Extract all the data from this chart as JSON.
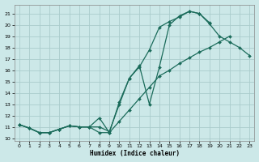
{
  "xlabel": "Humidex (Indice chaleur)",
  "background_color": "#cce8e8",
  "grid_color": "#aacccc",
  "line_color": "#1a6b5a",
  "xlim": [
    -0.5,
    23.5
  ],
  "ylim": [
    9.8,
    21.8
  ],
  "yticks": [
    10,
    11,
    12,
    13,
    14,
    15,
    16,
    17,
    18,
    19,
    20,
    21
  ],
  "xticks": [
    0,
    1,
    2,
    3,
    4,
    5,
    6,
    7,
    8,
    9,
    10,
    11,
    12,
    13,
    14,
    15,
    16,
    17,
    18,
    19,
    20,
    21,
    22,
    23
  ],
  "series": [
    {
      "x": [
        0,
        1,
        2,
        3,
        4,
        5,
        6,
        7,
        8,
        9,
        10,
        11,
        12,
        13,
        14,
        15,
        16,
        17,
        18,
        19,
        20,
        21,
        22,
        23
      ],
      "y": [
        11.2,
        10.9,
        10.5,
        10.5,
        10.8,
        11.1,
        11.0,
        11.0,
        11.0,
        10.6,
        13.0,
        15.3,
        16.3,
        17.8,
        19.8,
        20.3,
        20.7,
        21.2,
        21.0,
        20.1,
        19.0,
        18.5,
        18.0,
        17.3
      ]
    },
    {
      "x": [
        0,
        1,
        2,
        3,
        4,
        5,
        6,
        7,
        8,
        9,
        10,
        11,
        12,
        13,
        14,
        15,
        16,
        17,
        18,
        19
      ],
      "y": [
        11.2,
        10.9,
        10.5,
        10.5,
        10.8,
        11.1,
        11.0,
        11.0,
        11.8,
        10.5,
        13.2,
        15.3,
        16.4,
        13.0,
        16.3,
        20.0,
        20.8,
        21.2,
        21.0,
        20.2
      ]
    },
    {
      "x": [
        0,
        1,
        2,
        3,
        4,
        5,
        6,
        7,
        8,
        9,
        10,
        11,
        12,
        13,
        14,
        15,
        16,
        17,
        18,
        19,
        20,
        21,
        22,
        23
      ],
      "y": [
        11.2,
        10.9,
        10.5,
        10.5,
        10.8,
        11.1,
        11.0,
        11.0,
        10.5,
        10.5,
        11.5,
        12.5,
        13.5,
        14.5,
        15.5,
        16.0,
        16.6,
        17.1,
        17.6,
        18.0,
        18.5,
        19.0,
        null,
        null
      ]
    }
  ]
}
